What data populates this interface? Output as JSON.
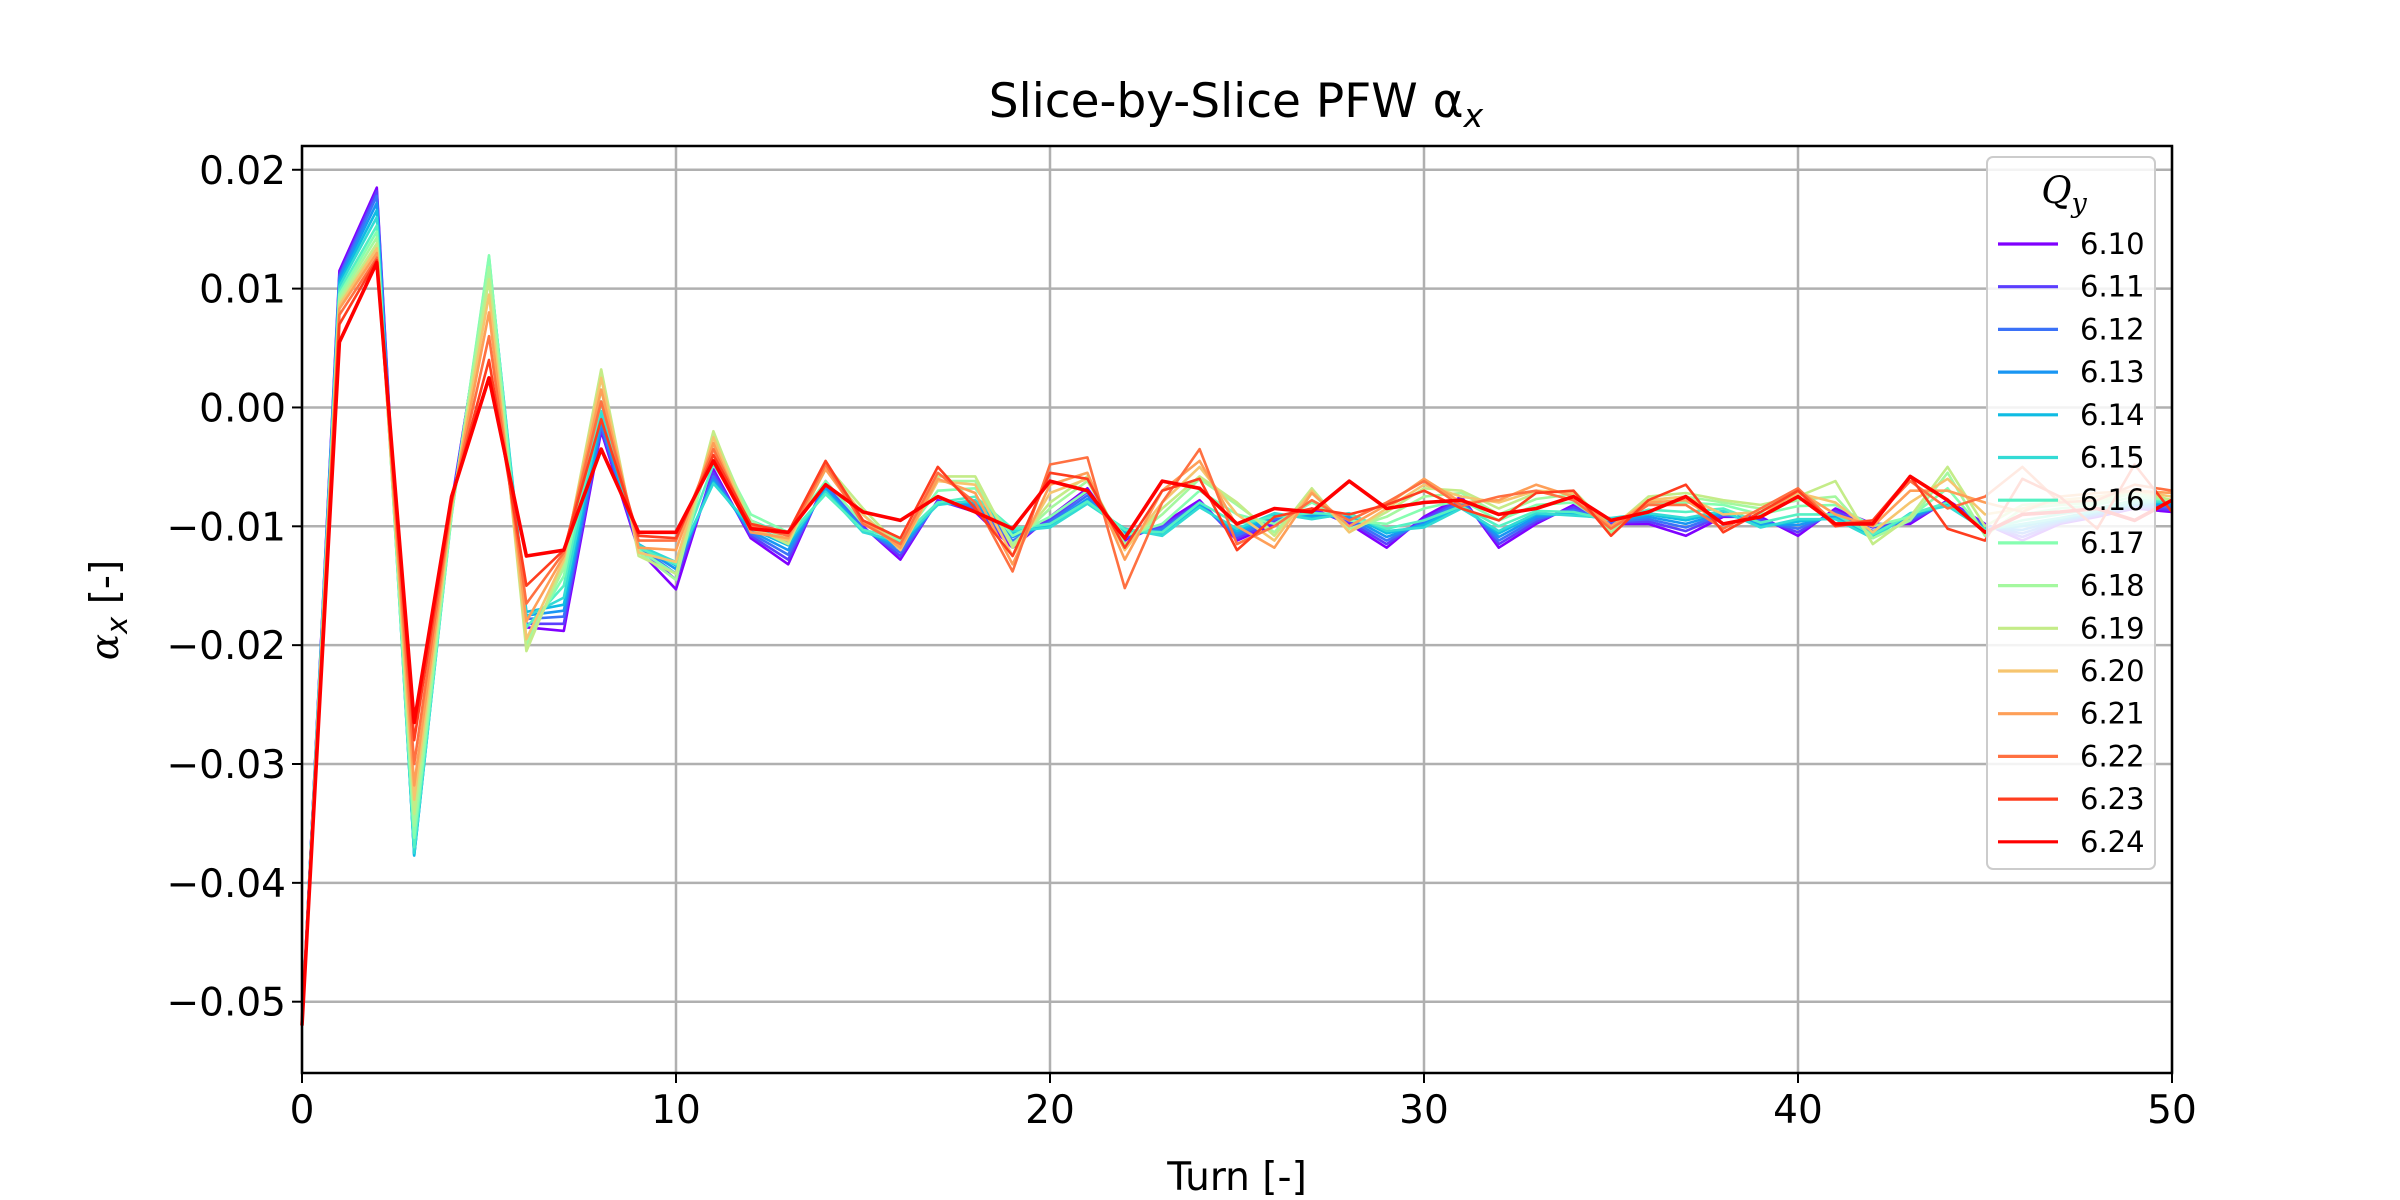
{
  "chart_data": {
    "type": "line",
    "title": "Slice-by-Slice PFW α",
    "title_sub": "x",
    "xlabel": "Turn [-]",
    "ylabel": "α",
    "ylabel_sub": "x",
    "ylabel_suffix": " [-]",
    "xlim": [
      0,
      50
    ],
    "ylim": [
      -0.056,
      0.022
    ],
    "xticks": [
      0,
      10,
      20,
      30,
      40,
      50
    ],
    "yticks": [
      0.02,
      0.01,
      0.0,
      -0.01,
      -0.02,
      -0.03,
      -0.04,
      -0.05
    ],
    "ytick_labels": [
      "0.02",
      "0.01",
      "0.00",
      "−0.01",
      "−0.02",
      "−0.03",
      "−0.04",
      "−0.05"
    ],
    "grid": true,
    "legend": {
      "title": "Q",
      "title_sub": "y",
      "placement": "top-right"
    },
    "x": [
      0,
      1,
      2,
      3,
      4,
      5,
      6,
      7,
      8,
      9,
      10,
      11,
      12,
      13,
      14,
      15,
      16,
      17,
      18,
      19,
      20,
      21,
      22,
      23,
      24,
      25,
      26,
      27,
      28,
      29,
      30,
      31,
      32,
      33,
      34,
      35,
      36,
      37,
      38,
      39,
      40,
      41,
      42,
      43,
      44,
      45,
      46,
      47,
      48,
      49,
      50
    ],
    "series": [
      {
        "name": "6.10",
        "color": "#8000ff",
        "values": [
          -0.052,
          0.0115,
          0.0185,
          -0.0375,
          -0.008,
          0.0115,
          -0.0185,
          -0.0188,
          -0.002,
          -0.012,
          -0.0153,
          -0.0052,
          -0.011,
          -0.0132,
          -0.0062,
          -0.01,
          -0.0128,
          -0.0078,
          -0.0088,
          -0.0118,
          -0.0092,
          -0.0068,
          -0.0112,
          -0.0098,
          -0.0078,
          -0.0112,
          -0.0098,
          -0.0085,
          -0.0098,
          -0.0118,
          -0.0092,
          -0.0075,
          -0.0118,
          -0.0098,
          -0.0082,
          -0.0098,
          -0.0098,
          -0.0108,
          -0.0092,
          -0.0092,
          -0.0108,
          -0.0085,
          -0.0098,
          -0.0098,
          -0.0078,
          -0.0098,
          -0.0112,
          -0.0098,
          -0.0092,
          -0.0085,
          -0.0088
        ]
      },
      {
        "name": "6.11",
        "color": "#5b3efe",
        "values": [
          -0.052,
          0.0112,
          0.0182,
          -0.0375,
          -0.0082,
          0.0117,
          -0.0182,
          -0.0182,
          -0.0018,
          -0.0118,
          -0.0145,
          -0.0055,
          -0.0108,
          -0.0128,
          -0.0064,
          -0.0101,
          -0.0125,
          -0.0079,
          -0.0086,
          -0.0115,
          -0.0094,
          -0.0071,
          -0.011,
          -0.01,
          -0.008,
          -0.011,
          -0.0096,
          -0.0087,
          -0.0096,
          -0.0115,
          -0.0094,
          -0.0077,
          -0.0115,
          -0.0096,
          -0.0084,
          -0.0097,
          -0.0096,
          -0.0104,
          -0.0091,
          -0.0094,
          -0.0105,
          -0.0087,
          -0.0101,
          -0.0096,
          -0.0079,
          -0.0099,
          -0.0109,
          -0.0097,
          -0.0091,
          -0.0084,
          -0.0086
        ]
      },
      {
        "name": "6.12",
        "color": "#3b72f8",
        "values": [
          -0.052,
          0.011,
          0.0178,
          -0.0376,
          -0.0084,
          0.0119,
          -0.0178,
          -0.0176,
          -0.0015,
          -0.0117,
          -0.014,
          -0.0058,
          -0.0106,
          -0.0124,
          -0.0066,
          -0.0102,
          -0.0122,
          -0.008,
          -0.0084,
          -0.0112,
          -0.0096,
          -0.0074,
          -0.0108,
          -0.0102,
          -0.0081,
          -0.0108,
          -0.0094,
          -0.0089,
          -0.0094,
          -0.0112,
          -0.0096,
          -0.0079,
          -0.0112,
          -0.0094,
          -0.0086,
          -0.0096,
          -0.0094,
          -0.0101,
          -0.009,
          -0.0096,
          -0.0102,
          -0.0089,
          -0.0104,
          -0.0094,
          -0.008,
          -0.01,
          -0.0106,
          -0.0096,
          -0.009,
          -0.0083,
          -0.0084
        ]
      },
      {
        "name": "6.13",
        "color": "#1996f3",
        "values": [
          -0.052,
          0.0108,
          0.0172,
          -0.0377,
          -0.0086,
          0.0121,
          -0.0175,
          -0.0171,
          -0.0012,
          -0.0116,
          -0.0136,
          -0.0061,
          -0.0104,
          -0.012,
          -0.0068,
          -0.0103,
          -0.0119,
          -0.008,
          -0.0082,
          -0.0109,
          -0.0098,
          -0.0077,
          -0.0106,
          -0.0104,
          -0.0082,
          -0.0106,
          -0.0092,
          -0.0091,
          -0.0092,
          -0.0109,
          -0.0098,
          -0.0081,
          -0.0109,
          -0.0092,
          -0.0088,
          -0.0095,
          -0.0092,
          -0.0098,
          -0.0089,
          -0.0098,
          -0.0099,
          -0.0091,
          -0.0106,
          -0.0092,
          -0.0081,
          -0.0101,
          -0.0103,
          -0.0095,
          -0.0089,
          -0.0082,
          -0.0082
        ]
      },
      {
        "name": "6.14",
        "color": "#0fbce3",
        "values": [
          -0.052,
          0.0105,
          0.0166,
          -0.0377,
          -0.0088,
          0.0123,
          -0.0172,
          -0.0166,
          -0.0008,
          -0.0115,
          -0.0133,
          -0.0063,
          -0.0102,
          -0.0116,
          -0.007,
          -0.0104,
          -0.0116,
          -0.0081,
          -0.008,
          -0.0106,
          -0.0099,
          -0.0079,
          -0.0104,
          -0.0106,
          -0.0083,
          -0.0104,
          -0.009,
          -0.0093,
          -0.009,
          -0.0106,
          -0.0099,
          -0.0083,
          -0.0106,
          -0.009,
          -0.009,
          -0.0094,
          -0.009,
          -0.0095,
          -0.0088,
          -0.01,
          -0.0096,
          -0.0093,
          -0.0108,
          -0.009,
          -0.0082,
          -0.0102,
          -0.01,
          -0.0094,
          -0.0088,
          -0.0081,
          -0.008
        ]
      },
      {
        "name": "6.15",
        "color": "#33dbd5",
        "values": [
          -0.052,
          0.0102,
          0.016,
          -0.0375,
          -0.009,
          0.0125,
          -0.0176,
          -0.016,
          -0.0003,
          -0.0116,
          -0.013,
          -0.0064,
          -0.01,
          -0.0113,
          -0.0071,
          -0.0105,
          -0.0113,
          -0.0082,
          -0.0078,
          -0.0104,
          -0.0101,
          -0.0081,
          -0.0102,
          -0.0108,
          -0.0084,
          -0.0102,
          -0.0089,
          -0.0094,
          -0.0089,
          -0.0104,
          -0.0101,
          -0.0085,
          -0.0104,
          -0.0089,
          -0.0091,
          -0.0093,
          -0.0089,
          -0.0093,
          -0.0087,
          -0.0101,
          -0.0094,
          -0.0094,
          -0.011,
          -0.0089,
          -0.0083,
          -0.0103,
          -0.0098,
          -0.0093,
          -0.0087,
          -0.008,
          -0.0079
        ]
      },
      {
        "name": "6.16",
        "color": "#55f1c3",
        "values": [
          -0.052,
          0.0098,
          0.0153,
          -0.037,
          -0.0091,
          0.0127,
          -0.0185,
          -0.015,
          0.0005,
          -0.0118,
          -0.0132,
          -0.0048,
          -0.0095,
          -0.0108,
          -0.0073,
          -0.0103,
          -0.011,
          -0.008,
          -0.0075,
          -0.0102,
          -0.0098,
          -0.0079,
          -0.0103,
          -0.0105,
          -0.008,
          -0.0098,
          -0.0092,
          -0.0089,
          -0.009,
          -0.0102,
          -0.0095,
          -0.0083,
          -0.01,
          -0.0087,
          -0.0088,
          -0.0095,
          -0.0086,
          -0.0088,
          -0.0085,
          -0.0097,
          -0.009,
          -0.009,
          -0.0107,
          -0.009,
          -0.008,
          -0.0103,
          -0.0095,
          -0.009,
          -0.0085,
          -0.0078,
          -0.0078
        ]
      },
      {
        "name": "6.17",
        "color": "#86feb0",
        "values": [
          -0.052,
          0.0095,
          0.0148,
          -0.0362,
          -0.009,
          0.0128,
          -0.0195,
          -0.0142,
          0.0015,
          -0.012,
          -0.014,
          -0.003,
          -0.009,
          -0.0105,
          -0.0062,
          -0.0098,
          -0.0112,
          -0.007,
          -0.0068,
          -0.0108,
          -0.0092,
          -0.007,
          -0.0108,
          -0.0098,
          -0.007,
          -0.009,
          -0.0098,
          -0.008,
          -0.0095,
          -0.0098,
          -0.0085,
          -0.0078,
          -0.0095,
          -0.0082,
          -0.008,
          -0.01,
          -0.0082,
          -0.008,
          -0.0082,
          -0.009,
          -0.0083,
          -0.0082,
          -0.01,
          -0.0092,
          -0.0068,
          -0.0105,
          -0.009,
          -0.0085,
          -0.0082,
          -0.0075,
          -0.0078
        ]
      },
      {
        "name": "6.18",
        "color": "#a4f89f",
        "values": [
          -0.052,
          0.0092,
          0.0143,
          -0.0352,
          -0.0088,
          0.0118,
          -0.02,
          -0.0135,
          0.0025,
          -0.0122,
          -0.0145,
          -0.0022,
          -0.0095,
          -0.0112,
          -0.0052,
          -0.009,
          -0.0118,
          -0.0062,
          -0.0062,
          -0.0115,
          -0.0085,
          -0.0062,
          -0.0115,
          -0.009,
          -0.006,
          -0.0082,
          -0.0105,
          -0.0072,
          -0.0102,
          -0.0092,
          -0.0075,
          -0.0072,
          -0.009,
          -0.0077,
          -0.0073,
          -0.0105,
          -0.0078,
          -0.0075,
          -0.008,
          -0.0085,
          -0.0078,
          -0.0075,
          -0.011,
          -0.0095,
          -0.0055,
          -0.0108,
          -0.0085,
          -0.0082,
          -0.008,
          -0.0072,
          -0.0078
        ]
      },
      {
        "name": "6.19",
        "color": "#c4ec88",
        "values": [
          -0.052,
          0.0089,
          0.0138,
          -0.0342,
          -0.0086,
          0.0108,
          -0.0205,
          -0.013,
          0.0032,
          -0.0125,
          -0.014,
          -0.002,
          -0.01,
          -0.0115,
          -0.0048,
          -0.0085,
          -0.0118,
          -0.0058,
          -0.0058,
          -0.0118,
          -0.008,
          -0.0058,
          -0.0118,
          -0.0085,
          -0.0058,
          -0.008,
          -0.0108,
          -0.0068,
          -0.0105,
          -0.0088,
          -0.0068,
          -0.007,
          -0.0085,
          -0.0072,
          -0.007,
          -0.0102,
          -0.0075,
          -0.0072,
          -0.0078,
          -0.0082,
          -0.0075,
          -0.0062,
          -0.0115,
          -0.0092,
          -0.005,
          -0.01,
          -0.0082,
          -0.008,
          -0.0078,
          -0.007,
          -0.0078
        ]
      },
      {
        "name": "6.20",
        "color": "#f6c56f",
        "values": [
          -0.052,
          0.0086,
          0.0134,
          -0.033,
          -0.0084,
          0.0095,
          -0.0195,
          -0.0128,
          0.0025,
          -0.0122,
          -0.013,
          -0.0025,
          -0.0102,
          -0.0112,
          -0.005,
          -0.009,
          -0.012,
          -0.0062,
          -0.0065,
          -0.0125,
          -0.0072,
          -0.006,
          -0.012,
          -0.008,
          -0.005,
          -0.009,
          -0.0112,
          -0.007,
          -0.0105,
          -0.0085,
          -0.0065,
          -0.0075,
          -0.008,
          -0.007,
          -0.0072,
          -0.01,
          -0.0078,
          -0.0075,
          -0.009,
          -0.0088,
          -0.0072,
          -0.008,
          -0.0105,
          -0.008,
          -0.006,
          -0.009,
          -0.0085,
          -0.0078,
          -0.0075,
          -0.007,
          -0.0075
        ]
      },
      {
        "name": "6.21",
        "color": "#fe9f58",
        "values": [
          -0.052,
          0.0083,
          0.013,
          -0.0318,
          -0.0082,
          0.008,
          -0.018,
          -0.0125,
          0.0015,
          -0.0118,
          -0.012,
          -0.003,
          -0.0105,
          -0.011,
          -0.0052,
          -0.0095,
          -0.0118,
          -0.006,
          -0.0072,
          -0.0132,
          -0.0065,
          -0.0055,
          -0.0128,
          -0.007,
          -0.0045,
          -0.01,
          -0.0118,
          -0.0072,
          -0.01,
          -0.0082,
          -0.006,
          -0.008,
          -0.0078,
          -0.0065,
          -0.0075,
          -0.01,
          -0.008,
          -0.0078,
          -0.0098,
          -0.0092,
          -0.007,
          -0.009,
          -0.01,
          -0.007,
          -0.007,
          -0.008,
          -0.0088,
          -0.0075,
          -0.0072,
          -0.007,
          -0.0072
        ]
      },
      {
        "name": "6.22",
        "color": "#ff7041",
        "values": [
          -0.052,
          0.0078,
          0.0126,
          -0.03,
          -0.008,
          0.006,
          -0.0165,
          -0.0122,
          0.0005,
          -0.0112,
          -0.0112,
          -0.0035,
          -0.01,
          -0.0108,
          -0.0048,
          -0.0098,
          -0.0115,
          -0.0055,
          -0.008,
          -0.0138,
          -0.0048,
          -0.0042,
          -0.0152,
          -0.008,
          -0.0035,
          -0.0115,
          -0.01,
          -0.0078,
          -0.0095,
          -0.008,
          -0.0062,
          -0.0083,
          -0.0075,
          -0.007,
          -0.0078,
          -0.0102,
          -0.0082,
          -0.0082,
          -0.0102,
          -0.0085,
          -0.0068,
          -0.0098,
          -0.0095,
          -0.0062,
          -0.0085,
          -0.0075,
          -0.005,
          -0.008,
          -0.0078,
          -0.0065,
          -0.007
        ]
      },
      {
        "name": "6.23",
        "color": "#ff3d1f",
        "values": [
          -0.052,
          0.007,
          0.0124,
          -0.028,
          -0.0078,
          0.004,
          -0.015,
          -0.012,
          -0.001,
          -0.0108,
          -0.011,
          -0.004,
          -0.0098,
          -0.0105,
          -0.0045,
          -0.0095,
          -0.011,
          -0.005,
          -0.0085,
          -0.0125,
          -0.0055,
          -0.006,
          -0.0118,
          -0.007,
          -0.006,
          -0.012,
          -0.0092,
          -0.0085,
          -0.009,
          -0.0082,
          -0.007,
          -0.0085,
          -0.0095,
          -0.0072,
          -0.007,
          -0.0108,
          -0.0078,
          -0.0065,
          -0.0105,
          -0.0088,
          -0.007,
          -0.01,
          -0.0095,
          -0.0058,
          -0.0102,
          -0.0112,
          -0.006,
          -0.0075,
          -0.0102,
          -0.0048,
          -0.0088
        ]
      },
      {
        "name": "6.24",
        "color": "#ff0000",
        "values": [
          -0.052,
          0.0055,
          0.0122,
          -0.0265,
          -0.0075,
          0.0025,
          -0.0125,
          -0.012,
          -0.0035,
          -0.0105,
          -0.0105,
          -0.0045,
          -0.0102,
          -0.0105,
          -0.0065,
          -0.0088,
          -0.0095,
          -0.0075,
          -0.0088,
          -0.0102,
          -0.0062,
          -0.007,
          -0.011,
          -0.0062,
          -0.0068,
          -0.0098,
          -0.0085,
          -0.0088,
          -0.0062,
          -0.0085,
          -0.008,
          -0.0078,
          -0.009,
          -0.0085,
          -0.0075,
          -0.0095,
          -0.0088,
          -0.0075,
          -0.0098,
          -0.0092,
          -0.0075,
          -0.0098,
          -0.0098,
          -0.0058,
          -0.0078,
          -0.0105,
          -0.009,
          -0.0088,
          -0.0085,
          -0.0095,
          -0.0078
        ]
      }
    ]
  }
}
